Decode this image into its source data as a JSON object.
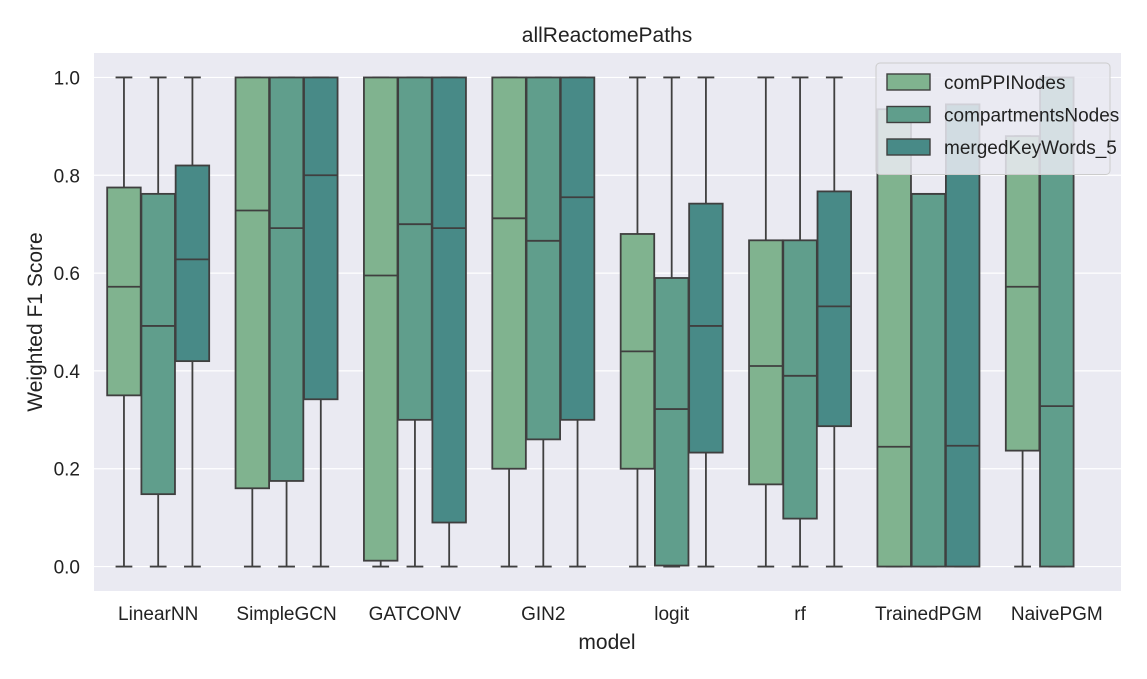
{
  "chart_data": {
    "type": "boxplot",
    "title": "allReactomePaths",
    "xlabel": "model",
    "ylabel": "Weighted F1 Score",
    "ylim": [
      -0.05,
      1.05
    ],
    "yticks": [
      0.0,
      0.2,
      0.4,
      0.6,
      0.8,
      1.0
    ],
    "grid": true,
    "legend_position": "top-right",
    "categories": [
      "LinearNN",
      "SimpleGCN",
      "GATCONV",
      "GIN2",
      "logit",
      "rf",
      "TrainedPGM",
      "NaivePGM"
    ],
    "series": [
      {
        "name": "comPPINodes",
        "color": "#80b38f",
        "boxes": [
          {
            "whislo": 0.0,
            "q1": 0.35,
            "med": 0.572,
            "q3": 0.775,
            "whishi": 1.0
          },
          {
            "whislo": 0.0,
            "q1": 0.16,
            "med": 0.728,
            "q3": 1.0,
            "whishi": 1.0
          },
          {
            "whislo": 0.0,
            "q1": 0.012,
            "med": 0.595,
            "q3": 1.0,
            "whishi": 1.0
          },
          {
            "whislo": 0.0,
            "q1": 0.2,
            "med": 0.712,
            "q3": 1.0,
            "whishi": 1.0
          },
          {
            "whislo": 0.0,
            "q1": 0.2,
            "med": 0.44,
            "q3": 0.68,
            "whishi": 1.0
          },
          {
            "whislo": 0.0,
            "q1": 0.168,
            "med": 0.41,
            "q3": 0.667,
            "whishi": 1.0
          },
          {
            "whislo": 0.0,
            "q1": 0.0,
            "med": 0.245,
            "q3": 0.935,
            "whishi": 0.935
          },
          {
            "whislo": 0.0,
            "q1": 0.237,
            "med": 0.572,
            "q3": 0.88,
            "whishi": 0.88
          }
        ]
      },
      {
        "name": "compartmentsNodes",
        "color": "#609e8c",
        "boxes": [
          {
            "whislo": 0.0,
            "q1": 0.148,
            "med": 0.492,
            "q3": 0.762,
            "whishi": 1.0
          },
          {
            "whislo": 0.0,
            "q1": 0.175,
            "med": 0.692,
            "q3": 1.0,
            "whishi": 1.0
          },
          {
            "whislo": 0.0,
            "q1": 0.3,
            "med": 0.7,
            "q3": 1.0,
            "whishi": 1.0
          },
          {
            "whislo": 0.0,
            "q1": 0.26,
            "med": 0.666,
            "q3": 1.0,
            "whishi": 1.0
          },
          {
            "whislo": 0.0,
            "q1": 0.002,
            "med": 0.322,
            "q3": 0.59,
            "whishi": 1.0
          },
          {
            "whislo": 0.0,
            "q1": 0.098,
            "med": 0.39,
            "q3": 0.667,
            "whishi": 1.0
          },
          {
            "whislo": 0.0,
            "q1": 0.0,
            "med": 0.762,
            "q3": 0.762,
            "whishi": 0.762
          },
          {
            "whislo": 0.0,
            "q1": 0.0,
            "med": 0.328,
            "q3": 1.0,
            "whishi": 1.0
          }
        ]
      },
      {
        "name": "mergedKeyWords_5",
        "color": "#488a87",
        "boxes": [
          {
            "whislo": 0.0,
            "q1": 0.42,
            "med": 0.628,
            "q3": 0.82,
            "whishi": 1.0
          },
          {
            "whislo": 0.0,
            "q1": 0.342,
            "med": 0.8,
            "q3": 1.0,
            "whishi": 1.0
          },
          {
            "whislo": 0.0,
            "q1": 0.09,
            "med": 0.692,
            "q3": 1.0,
            "whishi": 1.0
          },
          {
            "whislo": 0.0,
            "q1": 0.3,
            "med": 0.755,
            "q3": 1.0,
            "whishi": 1.0
          },
          {
            "whislo": 0.0,
            "q1": 0.233,
            "med": 0.492,
            "q3": 0.742,
            "whishi": 1.0
          },
          {
            "whislo": 0.0,
            "q1": 0.287,
            "med": 0.532,
            "q3": 0.767,
            "whishi": 1.0
          },
          {
            "whislo": 0.0,
            "q1": 0.0,
            "med": 0.247,
            "q3": 0.945,
            "whishi": 0.945
          },
          null
        ]
      }
    ]
  }
}
